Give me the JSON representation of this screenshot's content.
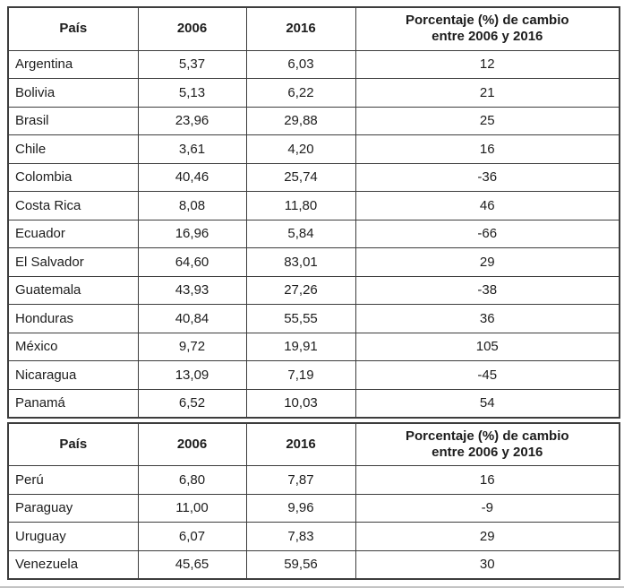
{
  "chart_data": {
    "type": "table",
    "columns": [
      "País",
      "2006",
      "2016",
      "Porcentaje (%) de cambio entre 2006 y 2016"
    ],
    "sections": [
      {
        "header": {
          "pais": "País",
          "y2006": "2006",
          "y2016": "2016",
          "pct_line1": "Porcentaje (%) de cambio",
          "pct_line2": "entre 2006 y 2016"
        },
        "rows": [
          {
            "country": "Argentina",
            "v2006": "5,37",
            "v2016": "6,03",
            "change": "12"
          },
          {
            "country": "Bolivia",
            "v2006": "5,13",
            "v2016": "6,22",
            "change": "21"
          },
          {
            "country": "Brasil",
            "v2006": "23,96",
            "v2016": "29,88",
            "change": "25"
          },
          {
            "country": "Chile",
            "v2006": "3,61",
            "v2016": "4,20",
            "change": "16"
          },
          {
            "country": "Colombia",
            "v2006": "40,46",
            "v2016": "25,74",
            "change": "-36"
          },
          {
            "country": "Costa Rica",
            "v2006": "8,08",
            "v2016": "11,80",
            "change": "46"
          },
          {
            "country": "Ecuador",
            "v2006": "16,96",
            "v2016": "5,84",
            "change": "-66"
          },
          {
            "country": "El Salvador",
            "v2006": "64,60",
            "v2016": "83,01",
            "change": "29"
          },
          {
            "country": "Guatemala",
            "v2006": "43,93",
            "v2016": "27,26",
            "change": "-38"
          },
          {
            "country": "Honduras",
            "v2006": "40,84",
            "v2016": "55,55",
            "change": "36"
          },
          {
            "country": "México",
            "v2006": "9,72",
            "v2016": "19,91",
            "change": "105"
          },
          {
            "country": "Nicaragua",
            "v2006": "13,09",
            "v2016": "7,19",
            "change": "-45"
          },
          {
            "country": "Panamá",
            "v2006": "6,52",
            "v2016": "10,03",
            "change": "54"
          }
        ]
      },
      {
        "header": {
          "pais": "País",
          "y2006": "2006",
          "y2016": "2016",
          "pct_line1": "Porcentaje (%) de cambio",
          "pct_line2": "entre 2006 y 2016"
        },
        "rows": [
          {
            "country": "Perú",
            "v2006": "6,80",
            "v2016": "7,87",
            "change": "16"
          },
          {
            "country": "Paraguay",
            "v2006": "11,00",
            "v2016": "9,96",
            "change": "-9"
          },
          {
            "country": "Uruguay",
            "v2006": "6,07",
            "v2016": "7,83",
            "change": "29"
          },
          {
            "country": "Venezuela",
            "v2006": "45,65",
            "v2016": "59,56",
            "change": "30"
          }
        ]
      }
    ]
  }
}
